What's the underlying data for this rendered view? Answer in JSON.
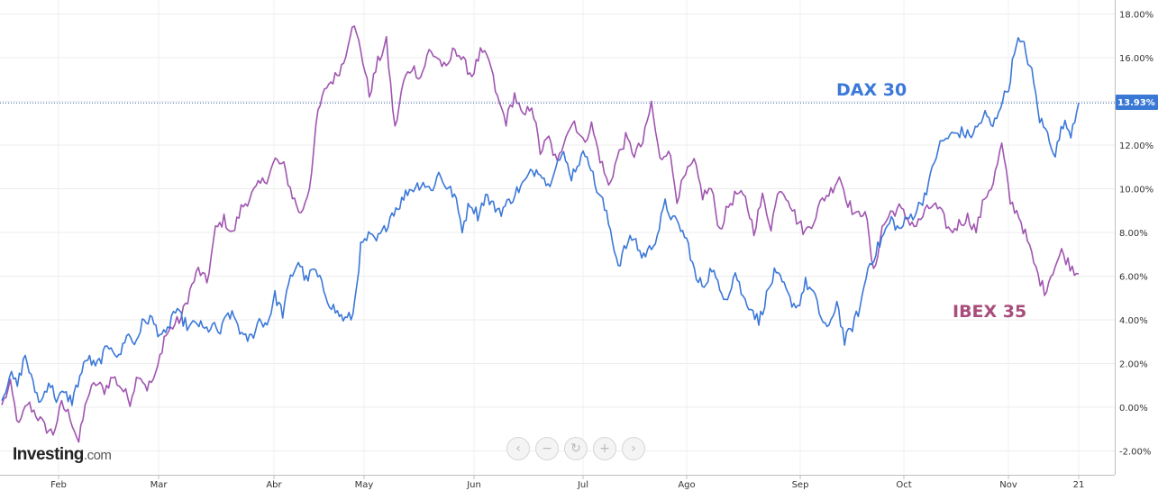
{
  "chart_data": {
    "type": "line",
    "x_ticks": [
      "Feb",
      "Mar",
      "Abr",
      "May",
      "Jun",
      "Jul",
      "Ago",
      "Sep",
      "Oct",
      "Nov",
      "21"
    ],
    "y_ticks": [
      "18.00%",
      "16.00%",
      "14.00%",
      "12.00%",
      "10.00%",
      "8.00%",
      "6.00%",
      "4.00%",
      "2.00%",
      "0.00%",
      "-2.00%"
    ],
    "ylim": [
      -3,
      18.5
    ],
    "current_value_label": "13.93%",
    "current_value": 13.93,
    "series": [
      {
        "name": "DAX 30",
        "color": "#3b78d8",
        "values": [
          0.3,
          1.5,
          1.0,
          2.4,
          1.0,
          0.2,
          1.2,
          0.4,
          0.6,
          0.3,
          1.4,
          2.3,
          1.8,
          2.4,
          2.9,
          2.2,
          3.4,
          2.9,
          3.8,
          4.1,
          3.5,
          3.2,
          4.4,
          4.1,
          3.6,
          3.9,
          3.5,
          3.7,
          3.4,
          4.3,
          4.0,
          3.1,
          3.2,
          4.0,
          3.8,
          5.1,
          4.3,
          5.9,
          6.7,
          5.8,
          6.3,
          5.6,
          4.8,
          4.3,
          4.0,
          4.2,
          7.3,
          7.8,
          7.6,
          8.1,
          8.9,
          9.3,
          9.9,
          10.1,
          10.3,
          9.9,
          10.7,
          10.1,
          9.7,
          8.2,
          9.4,
          8.8,
          9.7,
          9.2,
          9.0,
          9.4,
          9.9,
          10.3,
          10.8,
          10.9,
          10.1,
          11.2,
          11.5,
          10.6,
          11.3,
          11.7,
          10.2,
          9.4,
          8.1,
          6.5,
          7.4,
          7.8,
          6.9,
          7.2,
          7.9,
          9.3,
          8.6,
          8.2,
          7.4,
          5.8,
          5.6,
          6.4,
          5.3,
          5.1,
          6.2,
          5.0,
          4.6,
          3.9,
          5.1,
          6.1,
          5.7,
          4.9,
          4.6,
          5.7,
          5.2,
          4.1,
          3.5,
          4.9,
          3.0,
          3.7,
          4.6,
          6.4,
          7.1,
          7.9,
          8.6,
          8.1,
          8.6,
          8.9,
          9.5,
          10.5,
          11.9,
          12.3,
          12.5,
          12.6,
          12.4,
          12.8,
          13.4,
          12.8,
          13.9,
          14.6,
          16.8,
          16.5,
          15.3,
          13.2,
          12.5,
          11.6,
          13.0,
          12.6,
          13.93
        ]
      },
      {
        "name": "IBEX 35",
        "color": "#a055b0",
        "values": [
          0.1,
          1.0,
          -0.9,
          0.2,
          -0.3,
          -0.9,
          -1.2,
          0.1,
          -0.4,
          -1.6,
          0.5,
          1.1,
          0.8,
          1.4,
          0.9,
          0.3,
          1.6,
          0.9,
          1.4,
          3.2,
          3.7,
          4.1,
          5.3,
          6.3,
          5.7,
          8.1,
          8.6,
          7.9,
          9.1,
          9.6,
          10.1,
          10.5,
          11.3,
          11.0,
          9.7,
          8.8,
          10.1,
          13.5,
          14.7,
          15.1,
          15.8,
          17.6,
          16.4,
          14.3,
          15.8,
          16.7,
          12.7,
          14.9,
          15.6,
          15.1,
          16.3,
          16.0,
          15.4,
          16.5,
          15.8,
          15.2,
          16.2,
          15.9,
          14.1,
          13.1,
          14.3,
          13.2,
          13.9,
          11.7,
          12.3,
          11.1,
          12.6,
          13.1,
          12.1,
          12.9,
          11.4,
          10.1,
          11.4,
          12.3,
          11.6,
          12.1,
          13.9,
          11.3,
          11.9,
          9.6,
          10.6,
          11.2,
          9.7,
          10.0,
          8.1,
          9.2,
          9.8,
          9.5,
          8.1,
          9.6,
          8.3,
          10.1,
          9.6,
          8.6,
          8.0,
          8.6,
          9.5,
          9.9,
          10.6,
          9.4,
          8.7,
          9.1,
          6.1,
          8.2,
          8.9,
          9.1,
          8.6,
          8.3,
          8.9,
          9.3,
          8.8,
          8.0,
          8.4,
          8.7,
          8.1,
          9.6,
          10.3,
          12.0,
          9.4,
          8.8,
          7.6,
          6.3,
          5.3,
          6.3,
          7.1,
          6.5,
          6.1
        ]
      }
    ],
    "series_labels": {
      "dax": "DAX 30",
      "ibex": "IBEX 35"
    }
  },
  "logo": {
    "brand": "Investing",
    "suffix": ".com"
  },
  "controls": {
    "prev": "‹",
    "zoom_out": "−",
    "reset": "↻",
    "zoom_in": "+",
    "next": "›"
  }
}
